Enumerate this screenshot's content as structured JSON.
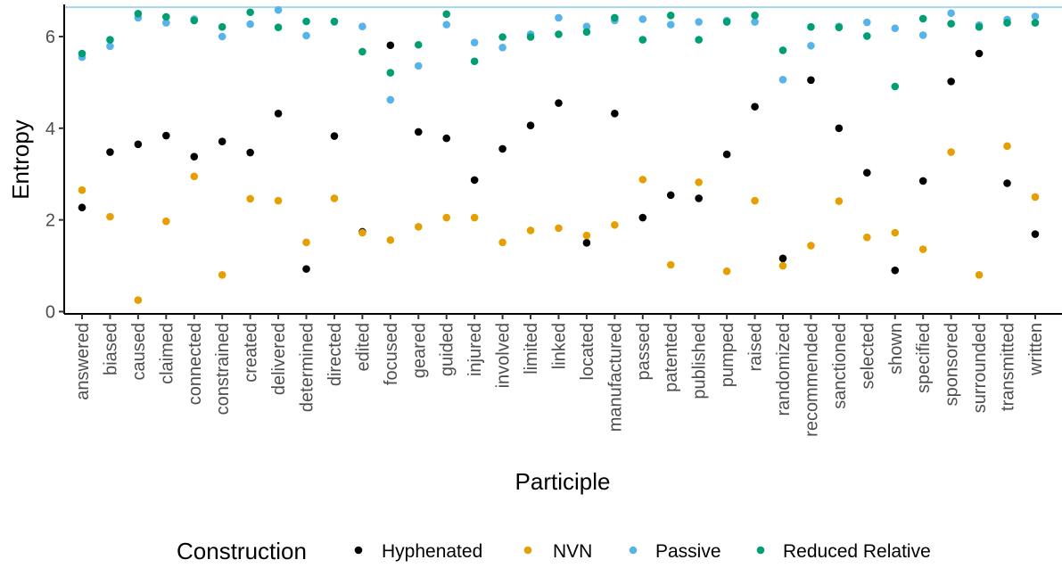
{
  "chart_data": {
    "type": "scatter",
    "xlabel": "Participle",
    "ylabel": "Entropy",
    "ylim": [
      -0.05,
      6.7
    ],
    "yticks": [
      0,
      2,
      4,
      6
    ],
    "reference_line": {
      "y": 6.64,
      "color": "#a6d6ee"
    },
    "grid": false,
    "legend": {
      "title": "Construction",
      "position": "bottom"
    },
    "categories": [
      "answered",
      "biased",
      "caused",
      "claimed",
      "connected",
      "constrained",
      "created",
      "delivered",
      "determined",
      "directed",
      "edited",
      "focused",
      "geared",
      "guided",
      "injured",
      "involved",
      "limited",
      "linked",
      "located",
      "manufactured",
      "passed",
      "patented",
      "published",
      "pumped",
      "raised",
      "randomized",
      "recommended",
      "sanctioned",
      "selected",
      "shown",
      "specified",
      "sponsored",
      "surrounded",
      "transmitted",
      "written"
    ],
    "series": [
      {
        "name": "Hyphenated",
        "color": "#000000",
        "values": [
          2.27,
          3.48,
          3.65,
          3.84,
          3.38,
          3.71,
          3.47,
          4.32,
          0.93,
          3.83,
          1.74,
          5.81,
          3.92,
          3.78,
          2.87,
          3.55,
          4.06,
          4.55,
          1.5,
          4.32,
          2.05,
          2.54,
          2.47,
          3.43,
          4.47,
          1.16,
          5.05,
          4.0,
          3.03,
          0.9,
          2.85,
          5.02,
          5.63,
          2.8,
          1.69
        ]
      },
      {
        "name": "NVN",
        "color": "#E69F00",
        "values": [
          2.65,
          2.07,
          0.25,
          1.97,
          2.95,
          0.8,
          2.46,
          2.42,
          1.51,
          2.47,
          1.72,
          1.56,
          1.85,
          2.05,
          2.05,
          1.51,
          1.77,
          1.82,
          1.66,
          1.89,
          2.88,
          1.02,
          2.82,
          0.88,
          2.42,
          1.0,
          1.44,
          2.41,
          1.62,
          1.72,
          1.36,
          3.48,
          0.8,
          3.61,
          2.5
        ]
      },
      {
        "name": "Passive",
        "color": "#56B4E9",
        "values": [
          5.55,
          5.79,
          6.41,
          6.3,
          6.38,
          6.0,
          6.27,
          6.58,
          6.02,
          6.32,
          6.22,
          4.62,
          5.36,
          6.26,
          5.87,
          5.76,
          6.05,
          6.41,
          6.22,
          6.35,
          6.38,
          6.26,
          6.32,
          6.35,
          6.32,
          5.06,
          5.8,
          6.22,
          6.31,
          6.18,
          6.03,
          6.51,
          6.25,
          6.37,
          6.44
        ]
      },
      {
        "name": "Reduced Relative",
        "color": "#009E73",
        "values": [
          5.63,
          5.93,
          6.5,
          6.43,
          6.35,
          6.21,
          6.53,
          6.2,
          6.33,
          6.33,
          5.67,
          5.21,
          5.82,
          6.49,
          5.46,
          5.99,
          5.99,
          6.05,
          6.1,
          6.41,
          5.93,
          6.46,
          5.93,
          6.32,
          6.46,
          5.7,
          6.21,
          6.2,
          6.01,
          4.91,
          6.39,
          6.28,
          6.21,
          6.3,
          6.3
        ]
      }
    ]
  }
}
